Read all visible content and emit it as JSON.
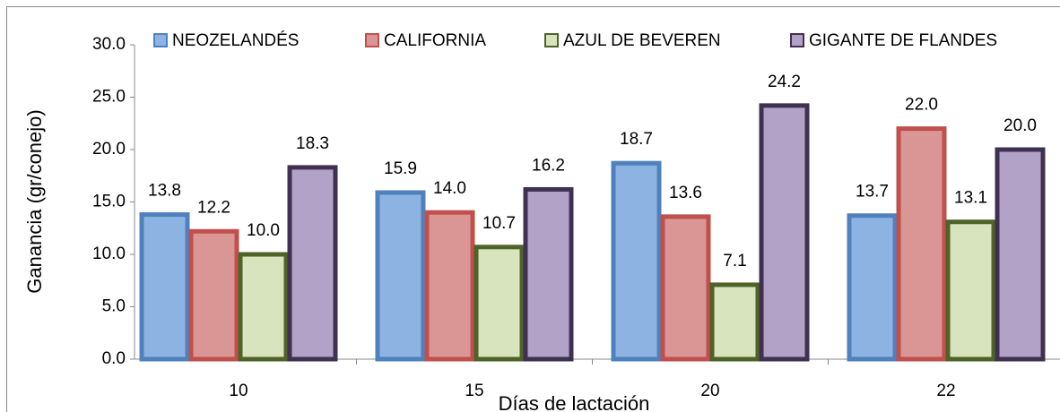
{
  "chart_data": {
    "type": "bar",
    "x_label": "Días de lactación",
    "y_label": "Ganancia (gr/conejo)",
    "categories": [
      "10",
      "15",
      "20",
      "22"
    ],
    "series": [
      {
        "name": "NEOZELANDÉS",
        "color": "#8db3e2",
        "edge_color": "#4f81bd",
        "values": [
          13.8,
          15.9,
          18.7,
          13.7
        ],
        "value_labels": [
          "13.8",
          "15.9",
          "18.7",
          "13.7"
        ]
      },
      {
        "name": "CALIFORNIA",
        "color": "#d99694",
        "edge_color": "#c0504d",
        "values": [
          12.2,
          14.0,
          13.6,
          22.0
        ],
        "value_labels": [
          "12.2",
          "14.0",
          "13.6",
          "22.0"
        ]
      },
      {
        "name": "AZUL DE BEVEREN",
        "color": "#d7e4bd",
        "edge_color": "#4f6228",
        "values": [
          10.0,
          10.7,
          7.1,
          13.1
        ],
        "value_labels": [
          "10.0",
          "10.7",
          "7.1",
          "13.1"
        ]
      },
      {
        "name": "GIGANTE DE FLANDES",
        "color": "#b3a2c7",
        "edge_color": "#3f3151",
        "values": [
          18.3,
          16.2,
          24.2,
          20.0
        ],
        "value_labels": [
          "18.3",
          "16.2",
          "24.2",
          "20.0"
        ]
      }
    ],
    "ylim": [
      0,
      30
    ],
    "yticks": [
      {
        "value": 0,
        "label": "0.0"
      },
      {
        "value": 5,
        "label": "5.0"
      },
      {
        "value": 10,
        "label": "10.0"
      },
      {
        "value": 15,
        "label": "15.0"
      },
      {
        "value": 20,
        "label": "20.0"
      },
      {
        "value": 25,
        "label": "25.0"
      },
      {
        "value": 30,
        "label": "30.0"
      }
    ],
    "legend": "top"
  }
}
